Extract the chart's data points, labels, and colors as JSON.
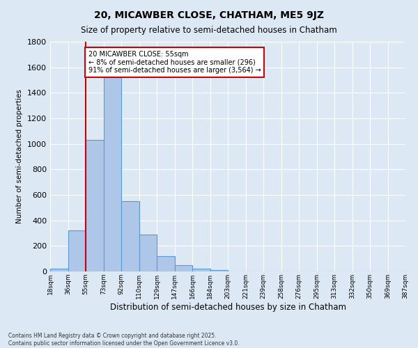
{
  "title": "20, MICAWBER CLOSE, CHATHAM, ME5 9JZ",
  "subtitle": "Size of property relative to semi-detached houses in Chatham",
  "xlabel": "Distribution of semi-detached houses by size in Chatham",
  "ylabel": "Number of semi-detached properties",
  "bins": [
    "18sqm",
    "36sqm",
    "55sqm",
    "73sqm",
    "92sqm",
    "110sqm",
    "129sqm",
    "147sqm",
    "166sqm",
    "184sqm",
    "203sqm",
    "221sqm",
    "239sqm",
    "258sqm",
    "276sqm",
    "295sqm",
    "313sqm",
    "332sqm",
    "350sqm",
    "369sqm",
    "387sqm"
  ],
  "values": [
    20,
    320,
    1030,
    1530,
    550,
    290,
    120,
    50,
    20,
    10,
    0,
    0,
    0,
    0,
    0,
    0,
    0,
    0,
    0,
    0
  ],
  "bar_color": "#aec6e8",
  "bar_edge_color": "#5b9bd5",
  "background_color": "#dce9f5",
  "annotation_text": "20 MICAWBER CLOSE: 55sqm\n← 8% of semi-detached houses are smaller (296)\n91% of semi-detached houses are larger (3,564) →",
  "annotation_box_color": "#ffffff",
  "annotation_box_edge": "#cc0000",
  "footer_text": "Contains HM Land Registry data © Crown copyright and database right 2025.\nContains public sector information licensed under the Open Government Licence v3.0.",
  "ylim": [
    0,
    1800
  ],
  "yticks": [
    0,
    200,
    400,
    600,
    800,
    1000,
    1200,
    1400,
    1600,
    1800
  ],
  "red_line_color": "#cc0000",
  "grid_color": "#ffffff",
  "figwidth": 6.0,
  "figheight": 5.0,
  "dpi": 100
}
